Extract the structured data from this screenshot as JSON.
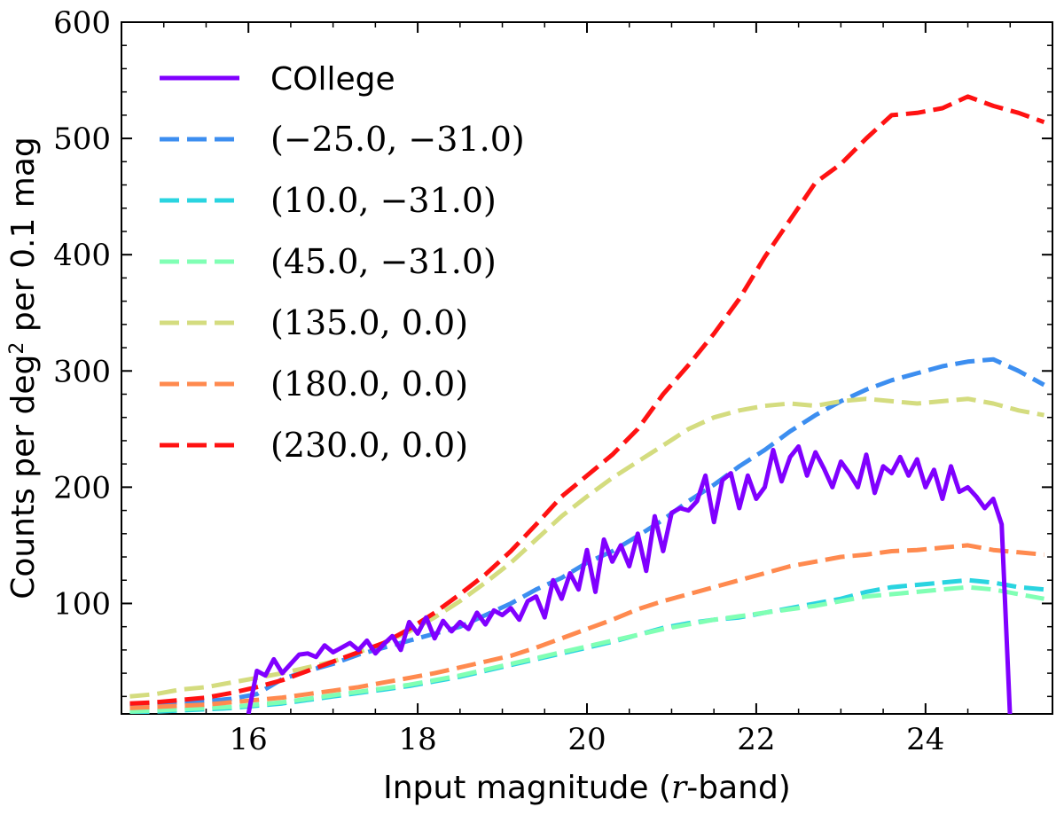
{
  "chart_data": {
    "type": "line",
    "title": "",
    "xlabel": "Input magnitude (r-band)",
    "xlabel_prefix": "Input magnitude (",
    "xlabel_var": "r",
    "xlabel_suffix": "-band)",
    "ylabel": "Counts per deg^2 per 0.1 mag",
    "ylabel_prefix": "Counts per deg",
    "ylabel_sup": "2",
    "ylabel_suffix": " per 0.1 mag",
    "xlim": [
      14.5,
      25.5
    ],
    "ylim": [
      5,
      600
    ],
    "xticks": [
      16,
      18,
      20,
      22,
      24
    ],
    "xtick_labels": [
      "16",
      "18",
      "20",
      "22",
      "24"
    ],
    "yticks": [
      100,
      200,
      300,
      400,
      500,
      600
    ],
    "ytick_labels": [
      "100",
      "200",
      "300",
      "400",
      "500",
      "600"
    ],
    "legend_position": "top-left",
    "series": [
      {
        "name": "COllege",
        "color": "#8000ff",
        "style": "solid",
        "x": [
          16.0,
          16.1,
          16.2,
          16.3,
          16.4,
          16.5,
          16.6,
          16.7,
          16.8,
          16.9,
          17.0,
          17.1,
          17.2,
          17.3,
          17.4,
          17.5,
          17.6,
          17.7,
          17.8,
          17.9,
          18.0,
          18.1,
          18.2,
          18.3,
          18.4,
          18.5,
          18.6,
          18.7,
          18.8,
          18.9,
          19.0,
          19.1,
          19.2,
          19.3,
          19.4,
          19.5,
          19.6,
          19.7,
          19.8,
          19.9,
          20.0,
          20.1,
          20.2,
          20.3,
          20.4,
          20.5,
          20.6,
          20.7,
          20.8,
          20.9,
          21.0,
          21.1,
          21.2,
          21.3,
          21.4,
          21.5,
          21.6,
          21.7,
          21.8,
          21.9,
          22.0,
          22.1,
          22.2,
          22.3,
          22.4,
          22.5,
          22.6,
          22.7,
          22.8,
          22.9,
          23.0,
          23.1,
          23.2,
          23.3,
          23.4,
          23.5,
          23.6,
          23.7,
          23.8,
          23.9,
          24.0,
          24.1,
          24.2,
          24.3,
          24.4,
          24.5,
          24.6,
          24.7,
          24.8,
          24.9,
          25.0,
          25.1
        ],
        "values": [
          5,
          42,
          38,
          52,
          40,
          48,
          56,
          57,
          54,
          64,
          58,
          62,
          66,
          60,
          68,
          57,
          65,
          72,
          60,
          84,
          74,
          88,
          70,
          85,
          76,
          84,
          78,
          92,
          82,
          94,
          90,
          96,
          86,
          102,
          106,
          88,
          120,
          104,
          126,
          112,
          146,
          110,
          155,
          136,
          150,
          132,
          160,
          128,
          175,
          145,
          178,
          182,
          180,
          188,
          210,
          170,
          206,
          212,
          182,
          210,
          190,
          200,
          232,
          205,
          226,
          235,
          210,
          230,
          216,
          200,
          222,
          212,
          200,
          228,
          195,
          218,
          212,
          226,
          210,
          224,
          200,
          215,
          190,
          218,
          196,
          200,
          192,
          182,
          190,
          168,
          0,
          0
        ]
      },
      {
        "name": "(−25.0, −31.0)",
        "color": "#3c8ef0",
        "style": "dashed",
        "x": [
          14.6,
          14.9,
          15.2,
          15.5,
          15.8,
          16.1,
          16.4,
          16.7,
          17.0,
          17.3,
          17.6,
          17.9,
          18.2,
          18.5,
          18.8,
          19.1,
          19.4,
          19.7,
          20.0,
          20.3,
          20.6,
          20.9,
          21.2,
          21.5,
          21.8,
          22.1,
          22.4,
          22.7,
          23.0,
          23.3,
          23.6,
          23.9,
          24.2,
          24.5,
          24.8,
          25.1,
          25.4
        ],
        "values": [
          12,
          13,
          15,
          16,
          18,
          22,
          35,
          42,
          48,
          56,
          62,
          68,
          74,
          80,
          90,
          100,
          112,
          122,
          135,
          145,
          158,
          172,
          188,
          202,
          218,
          232,
          248,
          262,
          274,
          284,
          292,
          298,
          304,
          308,
          310,
          300,
          288
        ]
      },
      {
        "name": "(10.0, −31.0)",
        "color": "#2ad4e0",
        "style": "dashed",
        "x": [
          14.6,
          14.9,
          15.2,
          15.5,
          15.8,
          16.1,
          16.4,
          16.7,
          17.0,
          17.3,
          17.6,
          17.9,
          18.2,
          18.5,
          18.8,
          19.1,
          19.4,
          19.7,
          20.0,
          20.3,
          20.6,
          20.9,
          21.2,
          21.5,
          21.8,
          22.1,
          22.4,
          22.7,
          23.0,
          23.3,
          23.6,
          23.9,
          24.2,
          24.5,
          24.8,
          25.1,
          25.4
        ],
        "values": [
          6,
          7,
          8,
          9,
          10,
          12,
          14,
          17,
          20,
          23,
          26,
          29,
          33,
          37,
          42,
          47,
          52,
          57,
          62,
          67,
          73,
          79,
          83,
          86,
          88,
          92,
          96,
          100,
          104,
          110,
          114,
          116,
          118,
          120,
          118,
          114,
          112
        ]
      },
      {
        "name": "(45.0, −31.0)",
        "color": "#80ffb4",
        "style": "dashed",
        "x": [
          14.6,
          14.9,
          15.2,
          15.5,
          15.8,
          16.1,
          16.4,
          16.7,
          17.0,
          17.3,
          17.6,
          17.9,
          18.2,
          18.5,
          18.8,
          19.1,
          19.4,
          19.7,
          20.0,
          20.3,
          20.6,
          20.9,
          21.2,
          21.5,
          21.8,
          22.1,
          22.4,
          22.7,
          23.0,
          23.3,
          23.6,
          23.9,
          24.2,
          24.5,
          24.8,
          25.1,
          25.4
        ],
        "values": [
          7,
          8,
          9,
          10,
          11,
          13,
          15,
          18,
          21,
          24,
          27,
          30,
          34,
          38,
          43,
          48,
          53,
          58,
          63,
          68,
          73,
          78,
          82,
          86,
          89,
          92,
          95,
          98,
          102,
          106,
          108,
          110,
          112,
          114,
          112,
          108,
          104
        ]
      },
      {
        "name": "(135.0, 0.0)",
        "color": "#d4dc7f",
        "style": "dashed",
        "x": [
          14.6,
          14.9,
          15.2,
          15.5,
          15.8,
          16.1,
          16.4,
          16.7,
          17.0,
          17.3,
          17.6,
          17.9,
          18.2,
          18.5,
          18.8,
          19.1,
          19.4,
          19.7,
          20.0,
          20.3,
          20.6,
          20.9,
          21.2,
          21.5,
          21.8,
          22.1,
          22.4,
          22.7,
          23.0,
          23.3,
          23.6,
          23.9,
          24.2,
          24.5,
          24.8,
          25.1,
          25.4
        ],
        "values": [
          20,
          22,
          26,
          28,
          32,
          36,
          40,
          45,
          50,
          58,
          66,
          76,
          88,
          102,
          118,
          135,
          155,
          175,
          192,
          208,
          222,
          236,
          250,
          260,
          266,
          270,
          272,
          270,
          274,
          276,
          274,
          272,
          274,
          276,
          272,
          266,
          262
        ]
      },
      {
        "name": "(180.0, 0.0)",
        "color": "#ff8a4f",
        "style": "dashed",
        "x": [
          14.6,
          14.9,
          15.2,
          15.5,
          15.8,
          16.1,
          16.4,
          16.7,
          17.0,
          17.3,
          17.6,
          17.9,
          18.2,
          18.5,
          18.8,
          19.1,
          19.4,
          19.7,
          20.0,
          20.3,
          20.6,
          20.9,
          21.2,
          21.5,
          21.8,
          22.1,
          22.4,
          22.7,
          23.0,
          23.3,
          23.6,
          23.9,
          24.2,
          24.5,
          24.8,
          25.1,
          25.4
        ],
        "values": [
          10,
          11,
          12,
          13,
          15,
          17,
          19,
          22,
          25,
          28,
          32,
          36,
          40,
          45,
          50,
          55,
          62,
          70,
          78,
          86,
          95,
          102,
          108,
          114,
          120,
          126,
          132,
          136,
          140,
          142,
          145,
          146,
          148,
          150,
          146,
          144,
          142
        ]
      },
      {
        "name": "(230.0, 0.0)",
        "color": "#ff1212",
        "style": "dashed",
        "x": [
          14.6,
          14.9,
          15.2,
          15.5,
          15.8,
          16.1,
          16.4,
          16.7,
          17.0,
          17.3,
          17.6,
          17.9,
          18.2,
          18.5,
          18.8,
          19.1,
          19.4,
          19.7,
          20.0,
          20.3,
          20.6,
          20.9,
          21.2,
          21.5,
          21.8,
          22.1,
          22.4,
          22.7,
          23.0,
          23.3,
          23.6,
          23.9,
          24.2,
          24.5,
          24.8,
          25.1,
          25.4
        ],
        "values": [
          14,
          15,
          17,
          19,
          23,
          28,
          34,
          42,
          50,
          58,
          66,
          78,
          92,
          108,
          125,
          145,
          168,
          192,
          210,
          228,
          250,
          280,
          305,
          332,
          362,
          398,
          430,
          462,
          478,
          500,
          520,
          522,
          526,
          536,
          528,
          522,
          514
        ]
      }
    ]
  }
}
